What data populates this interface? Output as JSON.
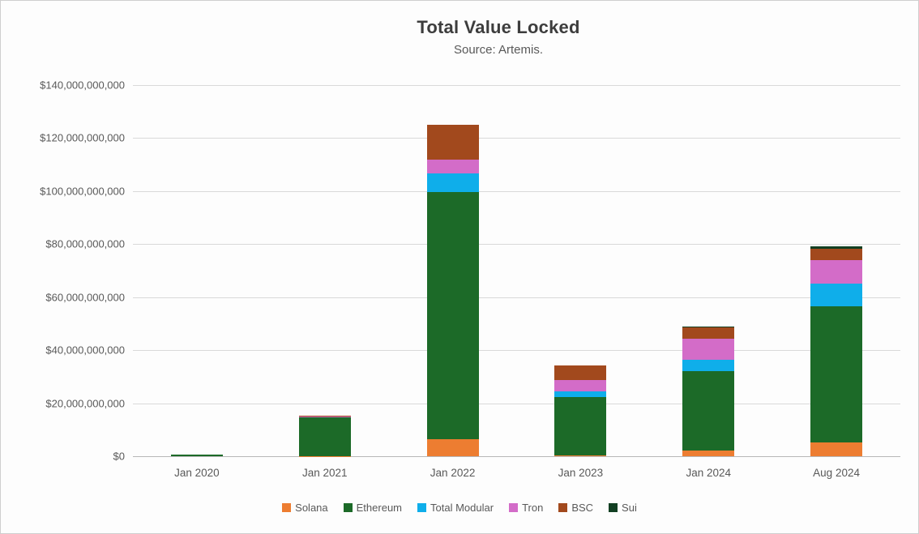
{
  "header": {
    "title": "Total Value Locked",
    "subtitle": "Source: Artemis."
  },
  "chart_data": {
    "type": "bar",
    "stacked": true,
    "title": "Total Value Locked",
    "subtitle": "Source: Artemis.",
    "categories": [
      "Jan 2020",
      "Jan 2021",
      "Jan 2022",
      "Jan 2023",
      "Jan 2024",
      "Aug 2024"
    ],
    "unit": "USD billions",
    "series": [
      {
        "name": "Solana",
        "color": "#ED7D31",
        "values": [
          0.0,
          0.1,
          6.4,
          0.2,
          2.1,
          5.2
        ]
      },
      {
        "name": "Ethereum",
        "color": "#1C6A28",
        "values": [
          0.6,
          14.9,
          93.3,
          22.0,
          30.0,
          51.4
        ]
      },
      {
        "name": "Total Modular",
        "color": "#0FAEEA",
        "values": [
          0.0,
          0.0,
          7.0,
          2.4,
          4.3,
          8.6
        ]
      },
      {
        "name": "Tron",
        "color": "#D36CC8",
        "values": [
          0.0,
          0.1,
          5.2,
          4.0,
          8.0,
          8.9
        ]
      },
      {
        "name": "BSC",
        "color": "#A2491D",
        "values": [
          0.0,
          0.1,
          13.1,
          5.5,
          4.3,
          4.3
        ]
      },
      {
        "name": "Sui",
        "color": "#123F22",
        "values": [
          0.0,
          0.0,
          0.0,
          0.0,
          0.3,
          0.9
        ]
      }
    ],
    "totals_billions": [
      0.6,
      15.2,
      125.0,
      34.1,
      49.0,
      79.3
    ],
    "ylim": [
      0,
      140
    ],
    "ytick_step": 20,
    "ytick_labels": [
      "$0",
      "$20,000,000,000",
      "$40,000,000,000",
      "$60,000,000,000",
      "$80,000,000,000",
      "$100,000,000,000",
      "$120,000,000,000",
      "$140,000,000,000"
    ],
    "grid": "horizontal",
    "legend_position": "bottom",
    "colors": {
      "grid": "#d9d9d9",
      "baseline": "#b7b7b7",
      "title_text": "#3d3d3d",
      "axis_text": "#595959"
    }
  }
}
